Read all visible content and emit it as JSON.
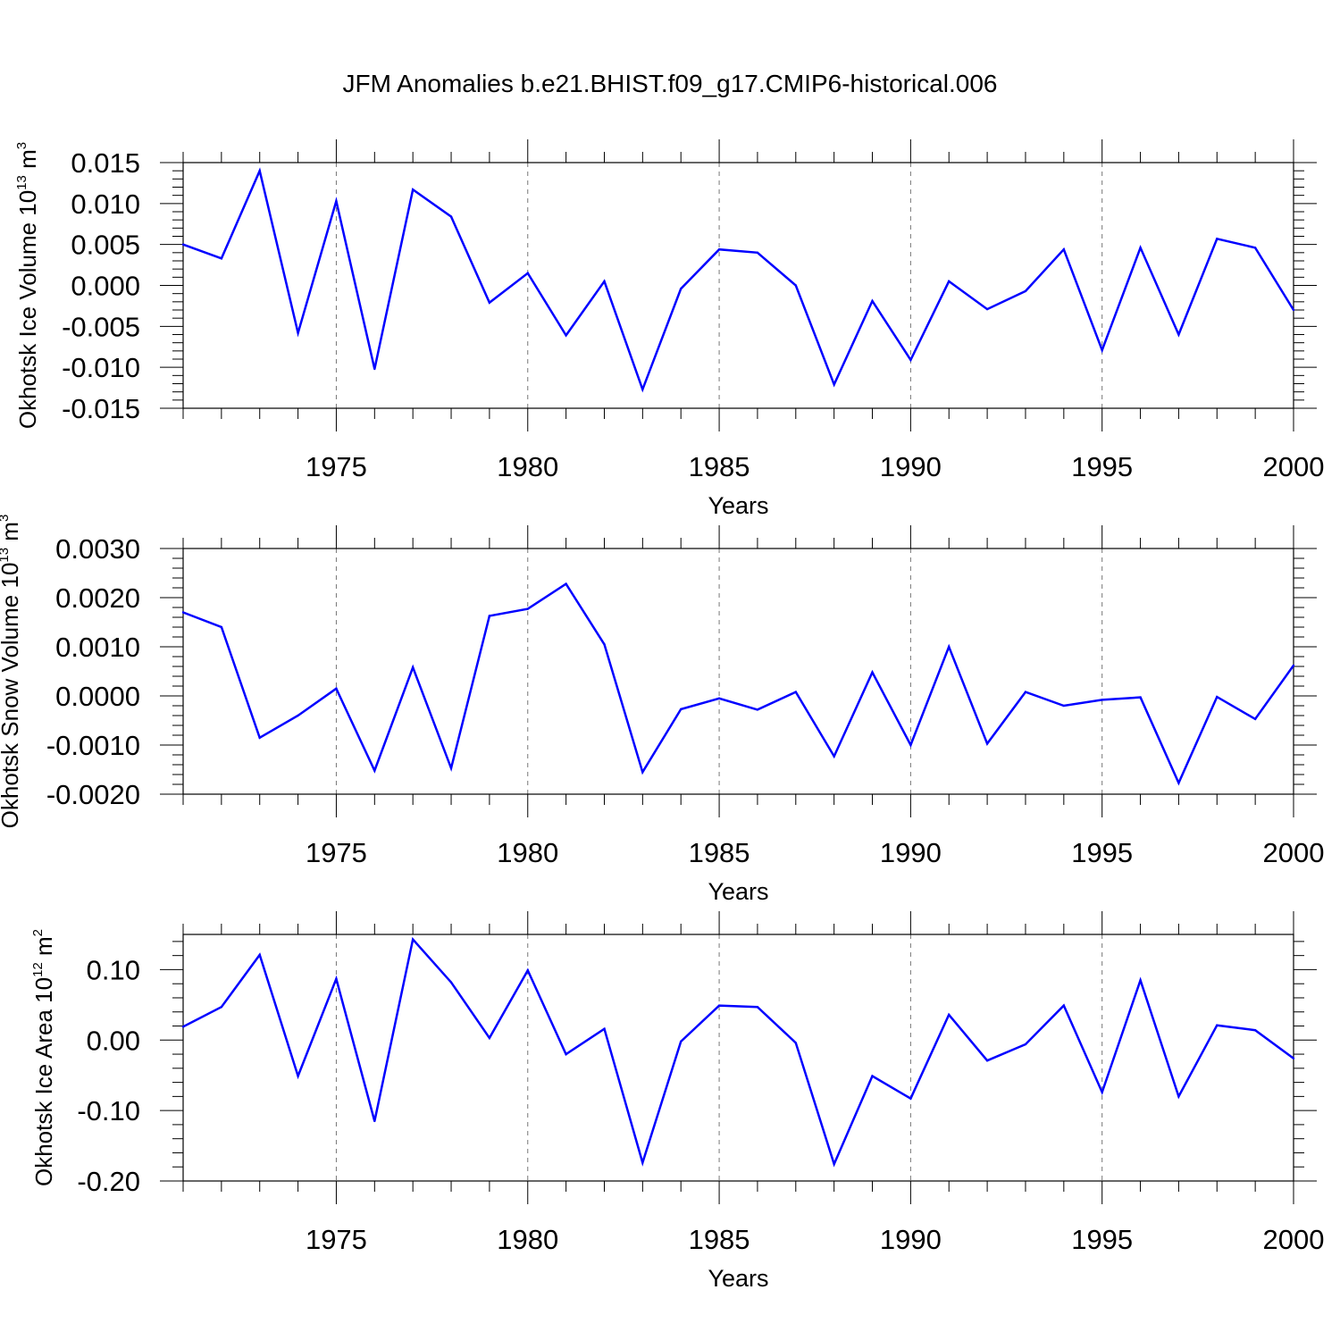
{
  "title": "JFM Anomalies b.e21.BHIST.f09_g17.CMIP6-historical.006",
  "chart_data": [
    {
      "type": "line",
      "xlabel": "Years",
      "ylabel": {
        "main": "Okhotsk Ice Volume 10",
        "exp": "13",
        "unit": " m",
        "unit_exp": "3"
      },
      "x_ticks": [
        1975,
        1980,
        1985,
        1990,
        1995,
        2000
      ],
      "x_tick_labels": [
        "1975",
        "1980",
        "1985",
        "1990",
        "1995",
        "2000"
      ],
      "y_ticks": [
        0.015,
        0.01,
        0.005,
        0.0,
        -0.005,
        -0.01,
        -0.015
      ],
      "y_tick_labels": [
        "0.015",
        "0.010",
        "0.005",
        "0.000",
        "-0.005",
        "-0.010",
        "-0.015"
      ],
      "xlim": [
        1971,
        2000
      ],
      "ylim": [
        -0.015,
        0.015
      ],
      "grid": "vertical dashed at major x ticks",
      "color": "#0000ff",
      "x": [
        1971,
        1972,
        1973,
        1974,
        1975,
        1976,
        1977,
        1978,
        1979,
        1980,
        1981,
        1982,
        1983,
        1984,
        1985,
        1986,
        1987,
        1988,
        1989,
        1990,
        1991,
        1992,
        1993,
        1994,
        1995,
        1996,
        1997,
        1998,
        1999,
        2000
      ],
      "values": [
        0.005,
        0.0033,
        0.014,
        -0.0058,
        0.0103,
        -0.0102,
        0.0117,
        0.0084,
        -0.0021,
        0.0015,
        -0.0061,
        0.0005,
        -0.0127,
        -0.0004,
        0.0044,
        0.004,
        0.0,
        -0.0121,
        -0.0019,
        -0.0091,
        0.0005,
        -0.0029,
        -0.0007,
        0.0044,
        -0.0079,
        0.0046,
        -0.006,
        0.0057,
        0.0046,
        -0.003
      ]
    },
    {
      "type": "line",
      "xlabel": "Years",
      "ylabel": {
        "main": "Okhotsk Snow Volume 10",
        "exp": "13",
        "unit": " m",
        "unit_exp": "3"
      },
      "x_ticks": [
        1975,
        1980,
        1985,
        1990,
        1995,
        2000
      ],
      "x_tick_labels": [
        "1975",
        "1980",
        "1985",
        "1990",
        "1995",
        "2000"
      ],
      "y_ticks": [
        0.003,
        0.002,
        0.001,
        0.0,
        -0.001,
        -0.002
      ],
      "y_tick_labels": [
        "0.0030",
        "0.0020",
        "0.0010",
        "0.0000",
        "-0.0010",
        "-0.0020"
      ],
      "xlim": [
        1971,
        2000
      ],
      "ylim": [
        -0.002,
        0.003
      ],
      "grid": "vertical dashed at major x ticks",
      "color": "#0000ff",
      "x": [
        1971,
        1972,
        1973,
        1974,
        1975,
        1976,
        1977,
        1978,
        1979,
        1980,
        1981,
        1982,
        1983,
        1984,
        1985,
        1986,
        1987,
        1988,
        1989,
        1990,
        1991,
        1992,
        1993,
        1994,
        1995,
        1996,
        1997,
        1998,
        1999,
        2000
      ],
      "values": [
        0.0017,
        0.0014,
        -0.00085,
        -0.0004,
        0.00015,
        -0.00152,
        0.00058,
        -0.00147,
        0.00163,
        0.00177,
        0.00228,
        0.00105,
        -0.00155,
        -0.00027,
        -5e-05,
        -0.00028,
        8e-05,
        -0.00123,
        0.00048,
        -0.001,
        0.001,
        -0.00097,
        8e-05,
        -0.0002,
        -8e-05,
        -3e-05,
        -0.00177,
        -2e-05,
        -0.00047,
        0.00062
      ]
    },
    {
      "type": "line",
      "xlabel": "Years",
      "ylabel": {
        "main": "Okhotsk Ice Area 10",
        "exp": "12",
        "unit": " m",
        "unit_exp": "2"
      },
      "x_ticks": [
        1975,
        1980,
        1985,
        1990,
        1995,
        2000
      ],
      "x_tick_labels": [
        "1975",
        "1980",
        "1985",
        "1990",
        "1995",
        "2000"
      ],
      "y_ticks": [
        0.1,
        0.0,
        -0.1,
        -0.2
      ],
      "y_tick_labels": [
        "0.10",
        "0.00",
        "-0.10",
        "-0.20"
      ],
      "xlim": [
        1971,
        2000
      ],
      "ylim": [
        -0.2,
        0.15
      ],
      "grid": "vertical dashed at major x ticks",
      "color": "#0000ff",
      "x": [
        1971,
        1972,
        1973,
        1974,
        1975,
        1976,
        1977,
        1978,
        1979,
        1980,
        1981,
        1982,
        1983,
        1984,
        1985,
        1986,
        1987,
        1988,
        1989,
        1990,
        1991,
        1992,
        1993,
        1994,
        1995,
        1996,
        1997,
        1998,
        1999,
        2000
      ],
      "values": [
        0.019,
        0.047,
        0.121,
        -0.051,
        0.087,
        -0.115,
        0.143,
        0.082,
        0.003,
        0.099,
        -0.02,
        0.016,
        -0.174,
        -0.002,
        0.049,
        0.047,
        -0.004,
        -0.176,
        -0.051,
        -0.083,
        0.036,
        -0.029,
        -0.006,
        0.049,
        -0.074,
        0.085,
        -0.08,
        0.021,
        0.014,
        -0.026
      ]
    }
  ]
}
